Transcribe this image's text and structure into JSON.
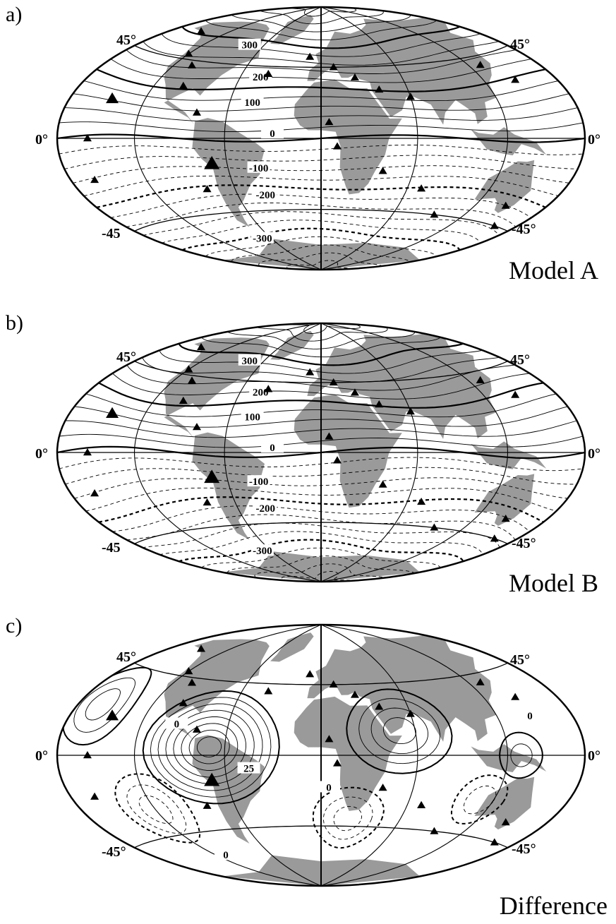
{
  "panels": [
    {
      "panel_label": "a)",
      "model_label": "Model A",
      "lat_labels": {
        "n45_left": "45°",
        "n45_right": "45°",
        "eq_left": "0°",
        "eq_right": "0°",
        "s45_left": "-45",
        "s45_right": "-45°"
      },
      "contour_labels": [
        "300",
        "200",
        "100",
        "0",
        "-100",
        "-200",
        "-300"
      ]
    },
    {
      "panel_label": "b)",
      "model_label": "Model B",
      "lat_labels": {
        "n45_left": "45°",
        "n45_right": "45°",
        "eq_left": "0°",
        "eq_right": "0°",
        "s45_left": "-45",
        "s45_right": "-45°"
      },
      "contour_labels": [
        "300",
        "200",
        "100",
        "0",
        "-100",
        "-200",
        "-300"
      ]
    },
    {
      "panel_label": "c)",
      "model_label": "Difference",
      "lat_labels": {
        "n45_left": "45°",
        "n45_right": "45°",
        "eq_left": "0°",
        "eq_right": "0°",
        "s45_left": "-45°",
        "s45_right": "-45°"
      },
      "contour_labels": [
        "0",
        "25",
        "0",
        "0",
        "0"
      ]
    }
  ],
  "colors": {
    "land": "#9a9a9a",
    "lines": "#000000",
    "background": "#ffffff"
  },
  "symbols": "station-triangle"
}
